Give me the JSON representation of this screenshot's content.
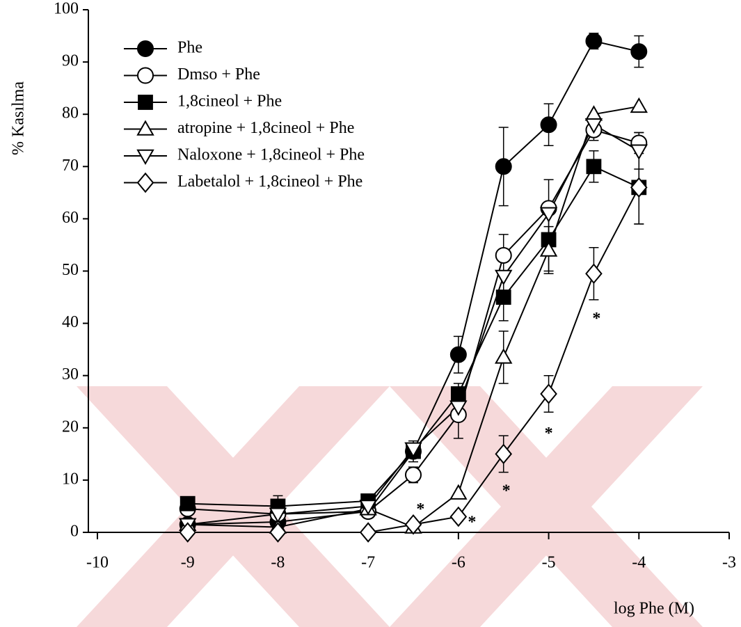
{
  "chart_data": {
    "type": "line",
    "ylabel": "% Kasılma",
    "xlabel": "log Phe  (M)",
    "xlim": [
      -10,
      -3
    ],
    "xticks": [
      -10,
      -9,
      -8,
      -7,
      -6,
      -5,
      -4,
      -3
    ],
    "ylim": [
      0,
      100
    ],
    "yticks": [
      0,
      10,
      20,
      30,
      40,
      50,
      60,
      70,
      80,
      90,
      100
    ],
    "legend": "upper left",
    "x": [
      -9,
      -8,
      -7,
      -6.5,
      -6,
      -5.5,
      -5,
      -4.5,
      -4
    ],
    "series": [
      {
        "name": "Phe",
        "color": "#000000",
        "marker": "circle",
        "filled": true,
        "values": [
          1.5,
          2,
          4,
          15.5,
          34,
          70,
          78,
          94,
          92
        ],
        "errors": [
          null,
          null,
          null,
          2,
          3.5,
          7.5,
          4,
          1.5,
          3
        ]
      },
      {
        "name": "Dmso + Phe",
        "color": "#000000",
        "marker": "circle",
        "filled": false,
        "values": [
          4.5,
          3.5,
          4,
          11,
          22.5,
          53,
          62,
          77,
          74.5
        ],
        "errors": [
          null,
          null,
          null,
          1.5,
          4.5,
          4,
          5.5,
          2,
          2
        ]
      },
      {
        "name": "1,8cineol + Phe",
        "color": "#000000",
        "marker": "square",
        "filled": true,
        "values": [
          5.5,
          5,
          6,
          15.5,
          26.5,
          45,
          56,
          70,
          66
        ],
        "errors": [
          null,
          2,
          null,
          null,
          2,
          4.5,
          6,
          3,
          7
        ]
      },
      {
        "name": "atropine + 1,8cineol + Phe",
        "color": "#000000",
        "marker": "triangle-up",
        "filled": false,
        "values": [
          1.5,
          1,
          4.5,
          1,
          7.5,
          33.5,
          54,
          80,
          81.5
        ],
        "errors": [
          null,
          null,
          null,
          null,
          null,
          5,
          4.5,
          null,
          null
        ]
      },
      {
        "name": "Naloxone + 1,8cineol + Phe",
        "color": "#000000",
        "marker": "triangle-down",
        "filled": false,
        "values": [
          1.5,
          3.5,
          5,
          16,
          24,
          49,
          61,
          78,
          73
        ],
        "errors": [
          null,
          null,
          null,
          null,
          null,
          null,
          null,
          null,
          3.5
        ]
      },
      {
        "name": "Labetalol + 1,8cineol + Phe",
        "color": "#000000",
        "marker": "diamond",
        "filled": false,
        "values": [
          0,
          0,
          0,
          1.5,
          3,
          15,
          26.5,
          49.5,
          66
        ],
        "errors": [
          null,
          null,
          null,
          null,
          0.8,
          3.5,
          3.5,
          5,
          7
        ]
      }
    ],
    "annotations": [
      {
        "text": "*",
        "x": -6.42,
        "y": 5
      },
      {
        "text": "*",
        "x": -5.85,
        "y": 2.5
      },
      {
        "text": "*",
        "x": -5.47,
        "y": 8.5
      },
      {
        "text": "*",
        "x": -5.0,
        "y": 19.5
      },
      {
        "text": "*",
        "x": -4.47,
        "y": 41.5
      }
    ]
  }
}
